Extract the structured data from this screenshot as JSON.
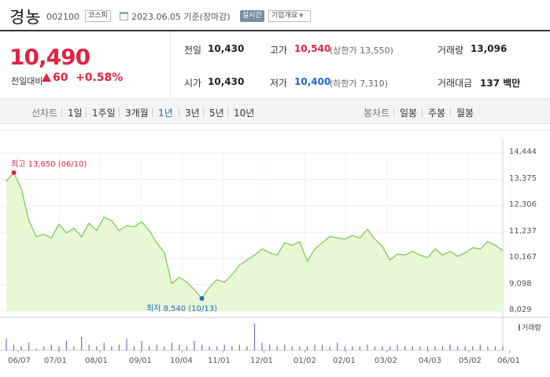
{
  "header": {
    "stock_name": "경농",
    "stock_code": "002100",
    "market": "코스피",
    "date_basis": "2023.06.05  기준(장마감)",
    "realtime": "실시간",
    "company_info": "기업개요"
  },
  "quote": {
    "price": "10,490",
    "change_label": "전일대비",
    "change": "60",
    "change_pct": "+0.58%",
    "prev_close_label": "전일",
    "prev_close": "10,430",
    "high_label": "고가",
    "high": "10,540",
    "upper_limit": "(상한가 13,550)",
    "volume_label": "거래량",
    "volume": "13,096",
    "open_label": "시가",
    "open": "10,430",
    "low_label": "저가",
    "low": "10,400",
    "lower_limit": "(하한가 7,310)",
    "amount_label": "거래대금",
    "amount": "137 백만"
  },
  "period_bar": {
    "line_label": "선차트",
    "periods": [
      "1일",
      "1주일",
      "3개월",
      "1년",
      "3년",
      "5년",
      "10년"
    ],
    "selected": "1년",
    "candle_label": "봉차트",
    "candles": [
      "일봉",
      "주봉",
      "월봉"
    ]
  },
  "colors": {
    "up": "#e12343",
    "down": "#1e6ac4",
    "area_fill": "#e8f8d6",
    "area_line": "#74c94e",
    "volume": "#6a72c8"
  },
  "chart_data": {
    "type": "area",
    "x_tick_labels": [
      "06/07",
      "07/01",
      "08/01",
      "09/01",
      "10/04",
      "11/01",
      "12/01",
      "01/02",
      "02/01",
      "03/02",
      "04/03",
      "05/02",
      "06/01"
    ],
    "y_tick_labels": [
      "14,444",
      "13,375",
      "12,306",
      "11,237",
      "10,167",
      "9,098",
      "8,029"
    ],
    "ylim": [
      8029,
      14444
    ],
    "max_annotation": "최고 13,650 (06/10)",
    "min_annotation": "최저 8,540 (10/13)",
    "volume_legend": "거래량",
    "x": [
      "06/07",
      "06/10",
      "06/14",
      "06/19",
      "06/23",
      "06/28",
      "07/01",
      "07/06",
      "07/12",
      "07/18",
      "07/22",
      "07/27",
      "08/01",
      "08/05",
      "08/10",
      "08/16",
      "08/22",
      "08/26",
      "09/01",
      "09/06",
      "09/13",
      "09/19",
      "09/23",
      "09/28",
      "10/04",
      "10/07",
      "10/13",
      "10/18",
      "10/24",
      "10/28",
      "11/01",
      "11/07",
      "11/14",
      "11/21",
      "11/28",
      "12/01",
      "12/07",
      "12/14",
      "12/20",
      "12/27",
      "01/02",
      "01/06",
      "01/12",
      "01/18",
      "01/25",
      "02/01",
      "02/07",
      "02/13",
      "02/17",
      "02/23",
      "03/02",
      "03/08",
      "03/15",
      "03/21",
      "03/27",
      "04/03",
      "04/07",
      "04/13",
      "04/19",
      "04/25",
      "05/02",
      "05/08",
      "05/12",
      "05/18",
      "05/24",
      "06/01",
      "06/05"
    ],
    "values": [
      13300,
      13650,
      13000,
      11700,
      11050,
      11150,
      11000,
      11550,
      11200,
      11400,
      11050,
      11600,
      11300,
      11850,
      11700,
      11300,
      11500,
      11450,
      11650,
      11300,
      10800,
      10400,
      9150,
      9400,
      9200,
      8900,
      8540,
      9000,
      9300,
      9200,
      9500,
      9900,
      10100,
      10300,
      10550,
      10400,
      10300,
      10800,
      10700,
      10850,
      10050,
      10550,
      10800,
      11050,
      11000,
      10950,
      11100,
      11000,
      11350,
      10950,
      10650,
      10100,
      10350,
      10300,
      10450,
      10300,
      10200,
      10550,
      10300,
      10450,
      10250,
      10400,
      10600,
      10550,
      10850,
      10700,
      10490
    ],
    "volume": [
      6,
      3,
      2,
      4,
      1,
      2,
      3,
      2,
      5,
      2,
      7,
      3,
      2,
      4,
      2,
      3,
      6,
      2,
      5,
      2,
      3,
      2,
      4,
      3,
      2,
      5,
      3,
      2,
      2,
      3,
      2,
      3,
      2,
      14,
      4,
      3,
      2,
      3,
      2,
      2,
      2,
      3,
      3,
      2,
      4,
      2,
      2,
      2,
      3,
      2,
      2,
      2,
      3,
      2,
      2,
      2,
      2,
      2,
      2,
      3,
      2,
      2,
      2,
      3,
      2,
      2,
      2
    ]
  }
}
